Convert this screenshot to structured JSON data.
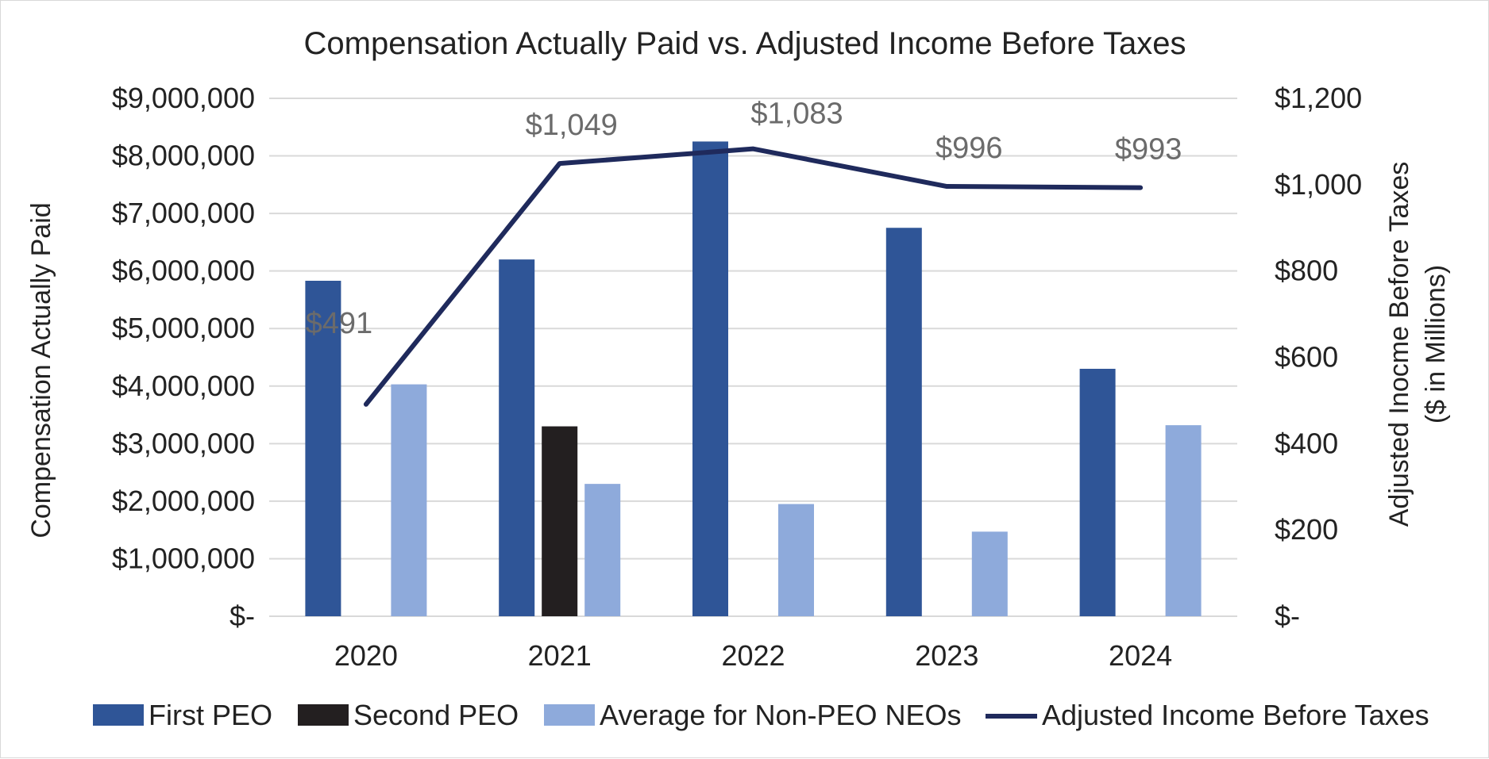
{
  "chart_data": {
    "type": "bar",
    "title": "Compensation Actually Paid vs. Adjusted Income Before Taxes",
    "categories": [
      "2020",
      "2021",
      "2022",
      "2023",
      "2024"
    ],
    "ylabel_left": "Compensation Actually Paid",
    "ylabel_right_line1": "Adjusted Inocme Before Taxes",
    "ylabel_right_line2": "($ in Millions)",
    "ylim_left": [
      0,
      9000000
    ],
    "ylim_right": [
      0,
      1200
    ],
    "left_ticks": [
      {
        "value": 0,
        "label": "$-"
      },
      {
        "value": 1000000,
        "label": "$1,000,000"
      },
      {
        "value": 2000000,
        "label": "$2,000,000"
      },
      {
        "value": 3000000,
        "label": "$3,000,000"
      },
      {
        "value": 4000000,
        "label": "$4,000,000"
      },
      {
        "value": 5000000,
        "label": "$5,000,000"
      },
      {
        "value": 6000000,
        "label": "$6,000,000"
      },
      {
        "value": 7000000,
        "label": "$7,000,000"
      },
      {
        "value": 8000000,
        "label": "$8,000,000"
      },
      {
        "value": 9000000,
        "label": "$9,000,000"
      }
    ],
    "right_ticks": [
      {
        "value": 0,
        "label": "$-"
      },
      {
        "value": 200,
        "label": "$200"
      },
      {
        "value": 400,
        "label": "$400"
      },
      {
        "value": 600,
        "label": "$600"
      },
      {
        "value": 800,
        "label": "$800"
      },
      {
        "value": 1000,
        "label": "$1,000"
      },
      {
        "value": 1200,
        "label": "$1,200"
      }
    ],
    "grid": true,
    "legend_position": "bottom",
    "series": [
      {
        "name": "First PEO",
        "kind": "bar",
        "color": "#2f5597",
        "values": [
          5830000,
          6200000,
          8250000,
          6750000,
          4300000
        ]
      },
      {
        "name": "Second PEO",
        "kind": "bar",
        "color": "#231f20",
        "values": [
          null,
          3300000,
          null,
          null,
          null
        ]
      },
      {
        "name": "Average for Non-PEO NEOs",
        "kind": "bar",
        "color": "#8eaadb",
        "values": [
          4030000,
          2300000,
          1950000,
          1470000,
          3320000
        ]
      },
      {
        "name": "Adjusted Income Before Taxes",
        "kind": "line",
        "axis": "right",
        "color": "#1f2a5c",
        "values": [
          491,
          1049,
          1083,
          996,
          993
        ],
        "labels": [
          "$491",
          "$1,049",
          "$1,083",
          "$996",
          "$993"
        ]
      }
    ]
  }
}
